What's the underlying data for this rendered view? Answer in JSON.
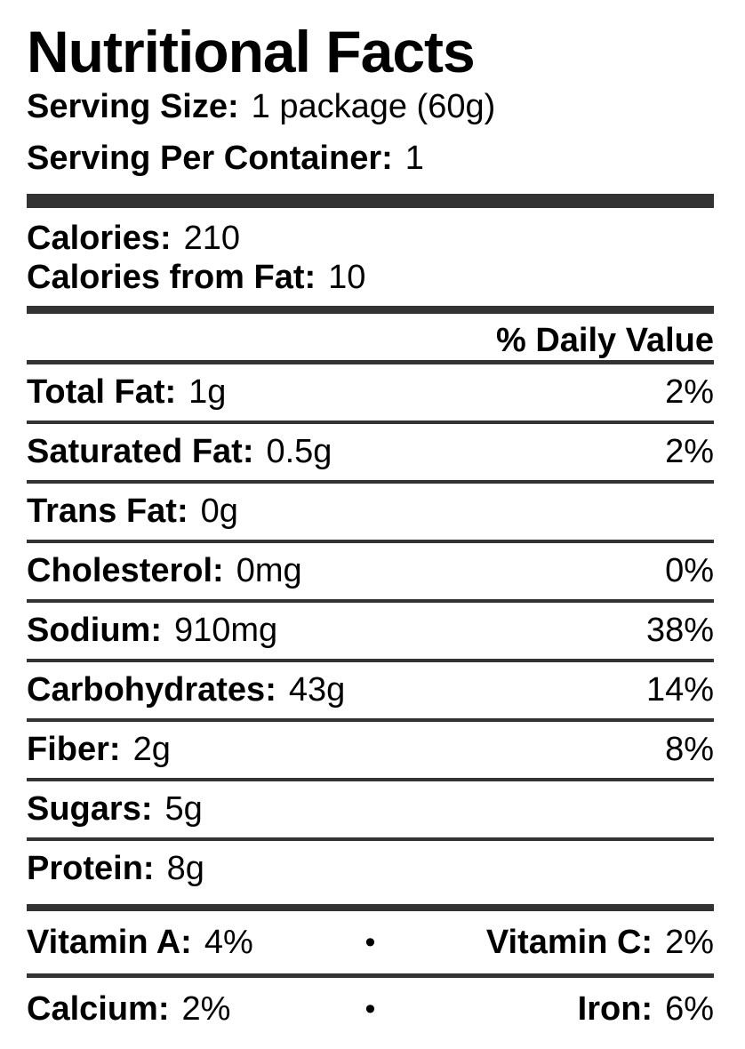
{
  "title": "Nutritional Facts",
  "serving": {
    "size_label": "Serving Size:",
    "size_value": "1 package (60g)",
    "per_container_label": "Serving Per Container:",
    "per_container_value": "1"
  },
  "calories": {
    "label": "Calories:",
    "value": "210",
    "from_fat_label": "Calories from Fat:",
    "from_fat_value": "10"
  },
  "daily_value_header": "% Daily Value",
  "nutrients": [
    {
      "label": "Total Fat:",
      "amount": "1g",
      "dv": "2%"
    },
    {
      "label": "Saturated Fat:",
      "amount": "0.5g",
      "dv": "2%"
    },
    {
      "label": "Trans Fat:",
      "amount": "0g",
      "dv": ""
    },
    {
      "label": "Cholesterol:",
      "amount": "0mg",
      "dv": "0%"
    },
    {
      "label": "Sodium:",
      "amount": "910mg",
      "dv": "38%"
    },
    {
      "label": "Carbohydrates:",
      "amount": "43g",
      "dv": "14%"
    },
    {
      "label": "Fiber:",
      "amount": "2g",
      "dv": "8%"
    },
    {
      "label": "Sugars:",
      "amount": "5g",
      "dv": ""
    },
    {
      "label": "Protein:",
      "amount": "8g",
      "dv": ""
    }
  ],
  "micronutrients": [
    {
      "left_label": "Vitamin A:",
      "left_value": "4%",
      "separator": "•",
      "right_label": "Vitamin C:",
      "right_value": "2%"
    },
    {
      "left_label": "Calcium:",
      "left_value": "2%",
      "separator": "•",
      "right_label": "Iron:",
      "right_value": "6%"
    }
  ],
  "colors": {
    "bar": "#333333",
    "text": "#000000",
    "background": "#ffffff"
  }
}
